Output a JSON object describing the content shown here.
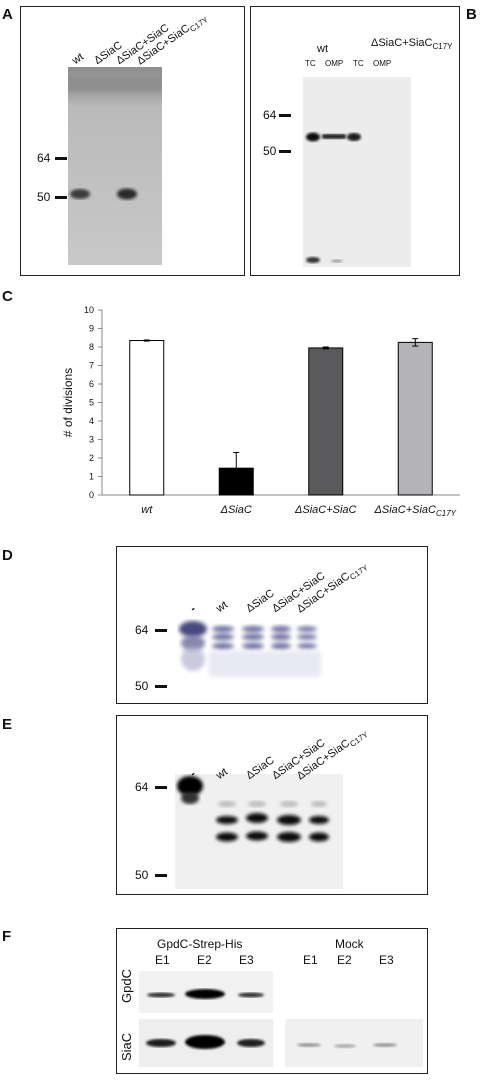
{
  "panels": {
    "A": {
      "label": "A",
      "lanes": [
        "wt",
        "ΔSiaC",
        "ΔSiaC+SiaC",
        "ΔSiaC+SiaC"
      ],
      "lane4_sub": "C17Y",
      "markers": [
        "64",
        "50"
      ]
    },
    "B": {
      "label": "B",
      "group1": "wt",
      "group2": "ΔSiaC+SiaC",
      "group2_sub": "C17Y",
      "sublanes": [
        "TC",
        "OMP",
        "TC",
        "OMP"
      ],
      "markers": [
        "64",
        "50"
      ]
    },
    "C": {
      "label": "C"
    },
    "D": {
      "label": "D",
      "lanes": [
        "-",
        "wt",
        "ΔSiaC",
        "ΔSiaC+SiaC",
        "ΔSiaC+SiaC"
      ],
      "lane5_sub": "C17Y",
      "markers": [
        "64",
        "50"
      ]
    },
    "E": {
      "label": "E",
      "lanes": [
        "-",
        "wt",
        "ΔSiaC",
        "ΔSiaC+SiaC",
        "ΔSiaC+SiaC"
      ],
      "lane5_sub": "C17Y",
      "markers": [
        "64",
        "50"
      ]
    },
    "F": {
      "label": "F",
      "group1": "GpdC-Strep-His",
      "group2": "Mock",
      "elutions": [
        "E1",
        "E2",
        "E3",
        "E1",
        "E2",
        "E3"
      ],
      "rows": [
        "GpdC",
        "SiaC"
      ]
    }
  },
  "chart_data": {
    "type": "bar",
    "categories": [
      "wt",
      "ΔSiaC",
      "ΔSiaC+SiaC",
      "ΔSiaC+SiaC"
    ],
    "category_sub": [
      "",
      "",
      "",
      "C17Y"
    ],
    "values": [
      8.35,
      1.45,
      7.95,
      8.25
    ],
    "errors": [
      0.03,
      0.85,
      0.05,
      0.2
    ],
    "colors": [
      "#ffffff",
      "#000000",
      "#5a5a5c",
      "#b4b4b8"
    ],
    "ylabel": "# of divisions",
    "ylim": [
      0,
      10
    ],
    "yticks": [
      "0",
      "1",
      "2",
      "3",
      "4",
      "5",
      "6",
      "7",
      "8",
      "9",
      "10"
    ],
    "grid": false,
    "legend": "none"
  }
}
